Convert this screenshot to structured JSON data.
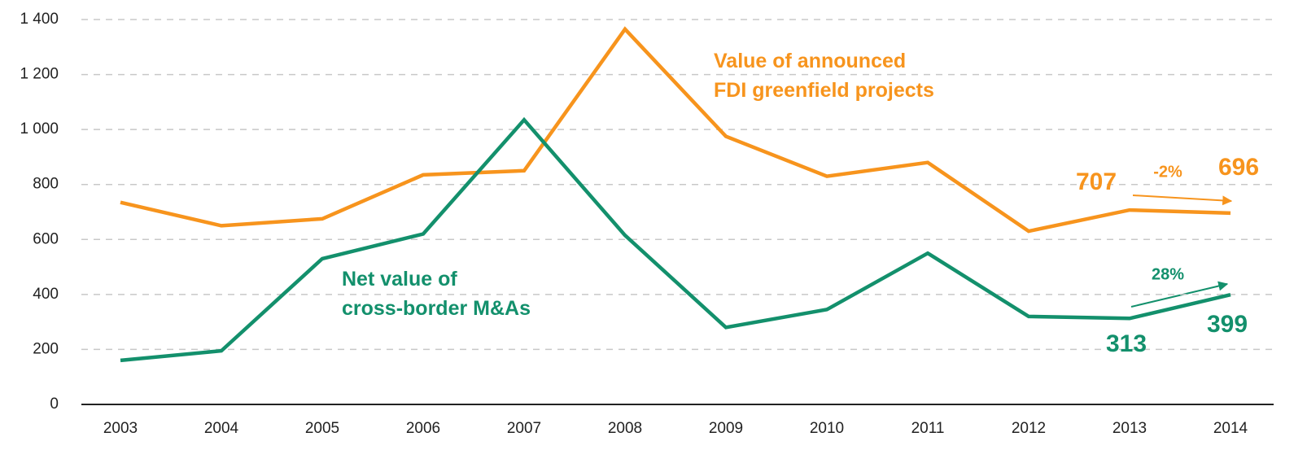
{
  "chart_data": {
    "type": "line",
    "categories": [
      "2003",
      "2004",
      "2005",
      "2006",
      "2007",
      "2008",
      "2009",
      "2010",
      "2011",
      "2012",
      "2013",
      "2014"
    ],
    "series": [
      {
        "name": "Value of announced\nFDI greenfield projects",
        "color": "#f7941d",
        "values": [
          735,
          650,
          675,
          835,
          850,
          1365,
          975,
          830,
          880,
          630,
          707,
          696
        ]
      },
      {
        "name": "Net value of\ncross-border M&As",
        "color": "#13906c",
        "values": [
          160,
          195,
          530,
          620,
          1035,
          615,
          280,
          345,
          550,
          320,
          313,
          399
        ]
      }
    ],
    "ylim": [
      0,
      1400
    ],
    "yticks": [
      0,
      200,
      400,
      600,
      800,
      {
        "value": 1000,
        "label": "1 000"
      },
      {
        "value": 1200,
        "label": "1 200"
      },
      {
        "value": 1400,
        "label": "1 400"
      }
    ],
    "grid": true,
    "annotations": [
      "-2%",
      "28%"
    ]
  }
}
